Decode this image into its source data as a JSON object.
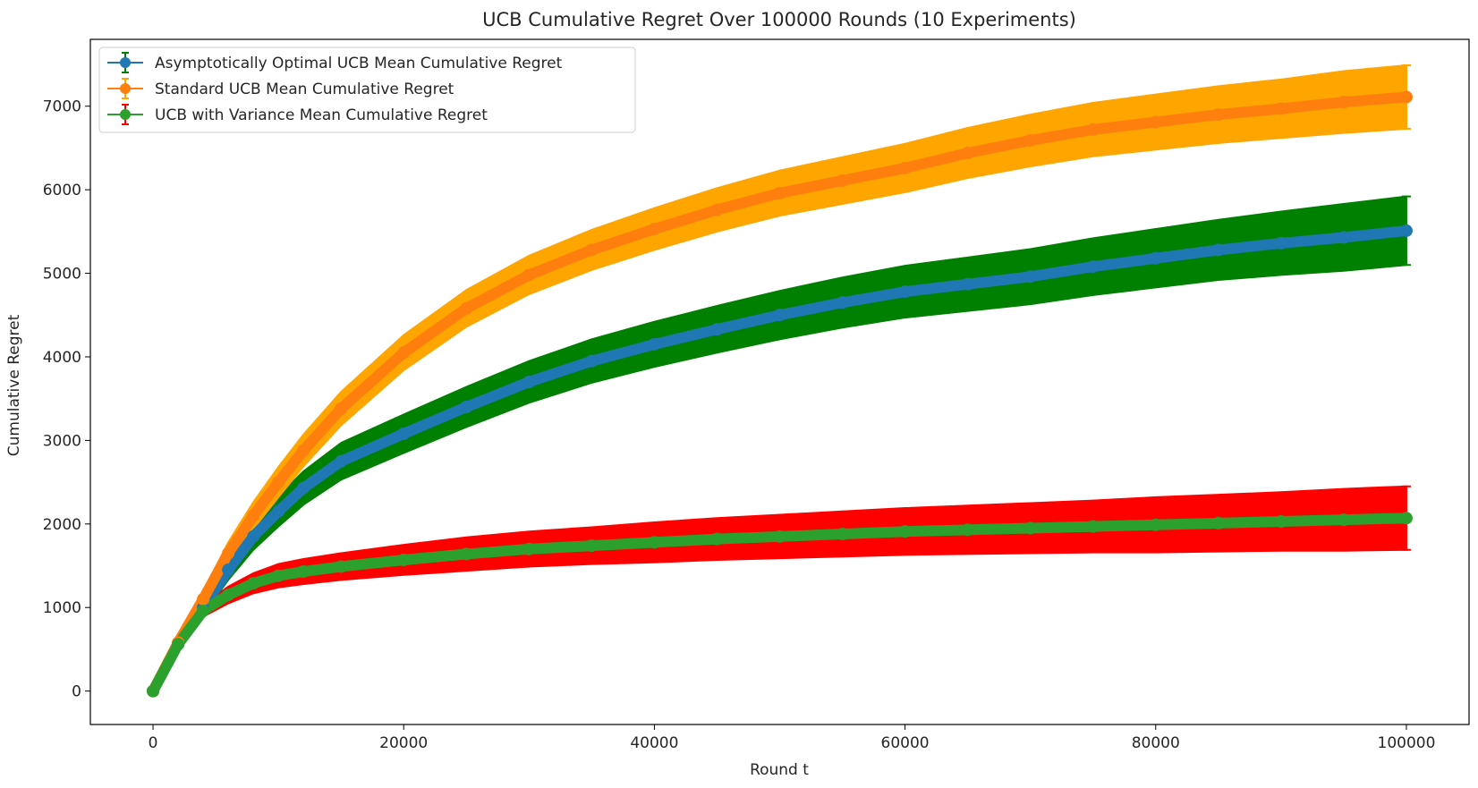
{
  "chart_data": {
    "type": "line",
    "title": "UCB Cumulative Regret Over 100000 Rounds (10 Experiments)",
    "xlabel": "Round t",
    "ylabel": "Cumulative Regret",
    "xlim": [
      -5000,
      105000
    ],
    "ylim": [
      -400,
      7800
    ],
    "xticks": [
      0,
      20000,
      40000,
      60000,
      80000,
      100000
    ],
    "yticks": [
      0,
      1000,
      2000,
      3000,
      4000,
      5000,
      6000,
      7000
    ],
    "grid": false,
    "legend_position": "top-left",
    "series": [
      {
        "name": "Asymptotically Optimal UCB Mean Cumulative Regret",
        "line_color": "#1f77b4",
        "error_color": "#008000",
        "x": [
          0,
          2000,
          4000,
          6000,
          8000,
          10000,
          12000,
          15000,
          20000,
          25000,
          30000,
          35000,
          40000,
          45000,
          50000,
          55000,
          60000,
          65000,
          70000,
          75000,
          80000,
          85000,
          90000,
          95000,
          100000
        ],
        "y": [
          0,
          560,
          1000,
          1450,
          1850,
          2150,
          2430,
          2750,
          3080,
          3400,
          3700,
          3950,
          4150,
          4330,
          4500,
          4650,
          4780,
          4870,
          4960,
          5080,
          5180,
          5280,
          5360,
          5430,
          5510
        ],
        "error": [
          0,
          40,
          80,
          120,
          160,
          180,
          200,
          220,
          230,
          240,
          250,
          260,
          270,
          280,
          290,
          300,
          310,
          320,
          330,
          340,
          350,
          360,
          380,
          400,
          410
        ]
      },
      {
        "name": "Standard UCB Mean Cumulative Regret",
        "line_color": "#ff7f0e",
        "error_color": "#ffa500",
        "x": [
          0,
          2000,
          4000,
          6000,
          8000,
          10000,
          12000,
          15000,
          20000,
          25000,
          30000,
          35000,
          40000,
          45000,
          50000,
          55000,
          60000,
          65000,
          70000,
          75000,
          80000,
          85000,
          90000,
          95000,
          100000
        ],
        "y": [
          0,
          580,
          1100,
          1650,
          2100,
          2500,
          2880,
          3380,
          4050,
          4580,
          4980,
          5280,
          5530,
          5760,
          5960,
          6110,
          6260,
          6440,
          6590,
          6720,
          6810,
          6900,
          6970,
          7050,
          7110
        ],
        "error": [
          0,
          50,
          90,
          130,
          160,
          180,
          190,
          200,
          210,
          220,
          230,
          240,
          250,
          260,
          270,
          280,
          290,
          300,
          310,
          320,
          330,
          340,
          350,
          370,
          380
        ]
      },
      {
        "name": "UCB with Variance Mean Cumulative Regret",
        "line_color": "#2ca02c",
        "error_color": "#ff0000",
        "x": [
          0,
          2000,
          4000,
          6000,
          8000,
          10000,
          12000,
          15000,
          20000,
          25000,
          30000,
          35000,
          40000,
          45000,
          50000,
          55000,
          60000,
          65000,
          70000,
          75000,
          80000,
          85000,
          90000,
          95000,
          100000
        ],
        "y": [
          0,
          560,
          960,
          1150,
          1290,
          1380,
          1430,
          1490,
          1570,
          1640,
          1700,
          1740,
          1780,
          1820,
          1850,
          1880,
          1910,
          1930,
          1950,
          1970,
          1990,
          2010,
          2030,
          2050,
          2070
        ],
        "error": [
          0,
          40,
          70,
          100,
          120,
          140,
          150,
          160,
          180,
          200,
          210,
          220,
          240,
          250,
          260,
          270,
          280,
          290,
          300,
          310,
          330,
          340,
          350,
          370,
          380
        ]
      }
    ]
  }
}
